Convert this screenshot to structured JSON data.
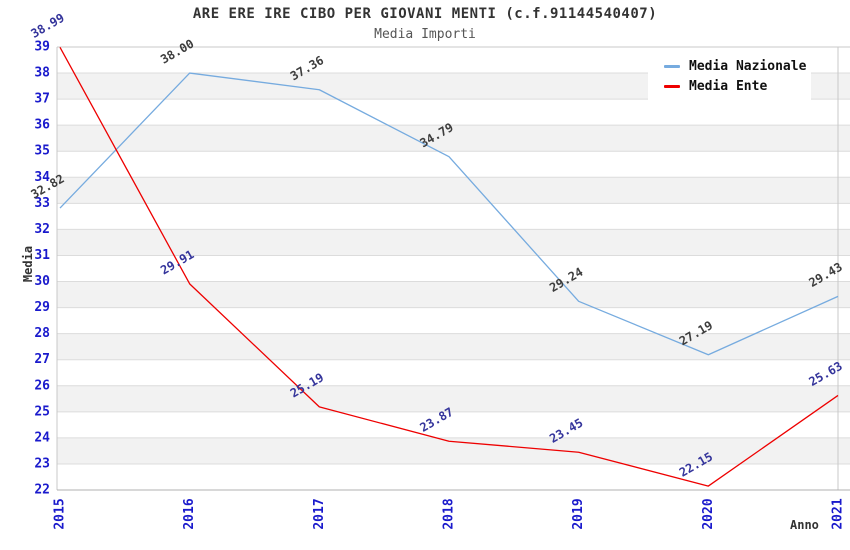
{
  "title": "ARE ERE IRE CIBO PER GIOVANI MENTI (c.f.91144540407)",
  "subtitle": "Media Importi",
  "chart_data": {
    "type": "line",
    "title": "ARE ERE IRE CIBO PER GIOVANI MENTI (c.f.91144540407)",
    "subtitle": "Media Importi",
    "xlabel": "Anno",
    "ylabel": "Media",
    "x": [
      2015,
      2016,
      2017,
      2018,
      2019,
      2020,
      2021
    ],
    "series": [
      {
        "name": "Media Nazionale",
        "color": "#76abdf",
        "label_color": "#3d3d3d",
        "values": [
          32.82,
          38.0,
          37.36,
          34.79,
          29.24,
          27.19,
          29.43
        ]
      },
      {
        "name": "Media Ente",
        "color": "#ee0000",
        "label_color": "#34349b",
        "values": [
          38.99,
          29.91,
          25.19,
          23.87,
          23.45,
          22.15,
          25.63
        ]
      }
    ],
    "ylim": [
      22,
      39
    ],
    "y_tick_step": 1,
    "y_ticks": [
      22,
      23,
      24,
      25,
      26,
      27,
      28,
      29,
      30,
      31,
      32,
      33,
      34,
      35,
      36,
      37,
      38,
      39
    ],
    "grid": "horizontal-bands",
    "band_colors": [
      "#ffffff",
      "#f2f2f2"
    ],
    "gridline_color": "#dcdcdc",
    "spine_color": "#c8c8c8",
    "bottom_spine_color": "#b0b0b0",
    "tick_label_color": "#1a1acc",
    "legend_position": "top-right",
    "value_label_decimals": 2
  }
}
